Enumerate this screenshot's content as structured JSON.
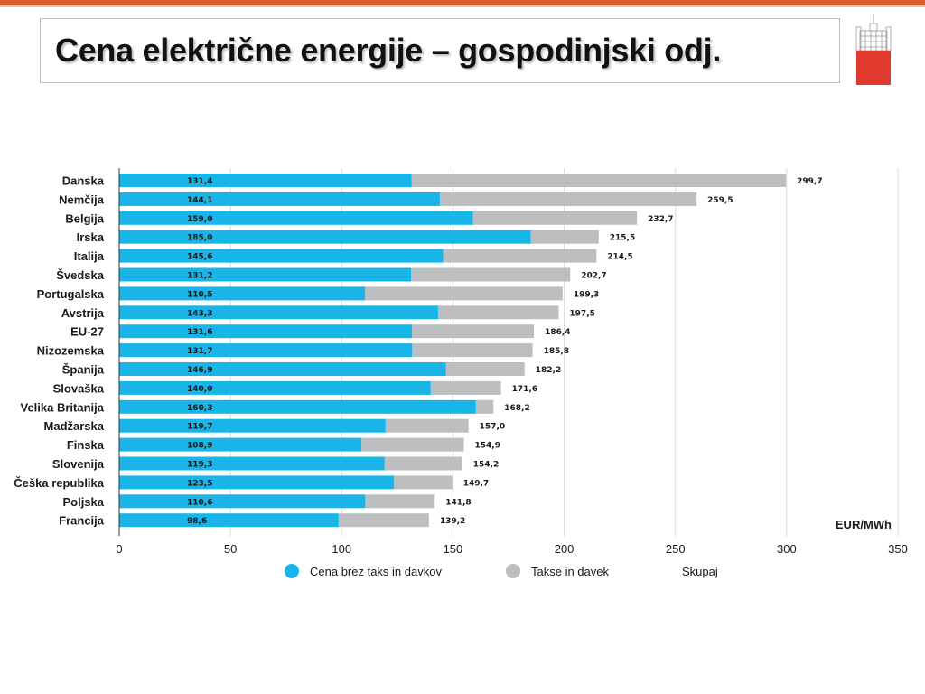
{
  "slide": {
    "title": "Cena električne energije – gospodinjski odj."
  },
  "colors": {
    "accent_bar": "#d8602a",
    "base_series": "#1ab5e8",
    "tax_series": "#bdbec0",
    "logo_red": "#e03a2f"
  },
  "logo": {
    "icon": "castle-crest-icon"
  },
  "chart_data": {
    "type": "bar",
    "orientation": "horizontal",
    "stacked": true,
    "categories": [
      "Danska",
      "Nemčija",
      "Belgija",
      "Irska",
      "Italija",
      "Švedska",
      "Portugalska",
      "Avstrija",
      "EU-27",
      "Nizozemska",
      "Španija",
      "Slovaška",
      "Velika Britanija",
      "Madžarska",
      "Finska",
      "Slovenija",
      "Češka republika",
      "Poljska",
      "Francija"
    ],
    "base_values": [
      131.4,
      144.1,
      159.0,
      185.0,
      145.6,
      131.2,
      110.5,
      143.3,
      131.6,
      131.7,
      146.9,
      140.0,
      160.3,
      119.7,
      108.9,
      119.3,
      123.5,
      110.6,
      98.6
    ],
    "base_labels": [
      "131,4",
      "144,1",
      "159,0",
      "185,0",
      "145,6",
      "131,2",
      "110,5",
      "143,3",
      "131,6",
      "131,7",
      "146,9",
      "140,0",
      "160,3",
      "119,7",
      "108,9",
      "119,3",
      "123,5",
      "110,6",
      "98,6"
    ],
    "total_values": [
      299.7,
      259.5,
      232.7,
      215.5,
      214.5,
      202.7,
      199.3,
      197.5,
      186.4,
      185.8,
      182.2,
      171.6,
      168.2,
      157.0,
      154.9,
      154.2,
      149.7,
      141.8,
      139.2
    ],
    "total_labels": [
      "299,7",
      "259,5",
      "232,7",
      "215,5",
      "214,5",
      "202,7",
      "199,3",
      "197,5",
      "186,4",
      "185,8",
      "182,2",
      "171,6",
      "168,2",
      "157,0",
      "154,9",
      "154,2",
      "149,7",
      "141,8",
      "139,2"
    ],
    "series": [
      {
        "name": "Cena brez taks in davkov",
        "color": "#1ab5e8"
      },
      {
        "name": "Takse in davek",
        "color": "#bdbec0"
      }
    ],
    "total_label_name": "Skupaj",
    "unit": "EUR/MWh",
    "xlim": [
      0,
      350
    ],
    "xticks": [
      0,
      50,
      100,
      150,
      200,
      250,
      300,
      350
    ],
    "grid": true,
    "legend_placement": "bottom"
  }
}
